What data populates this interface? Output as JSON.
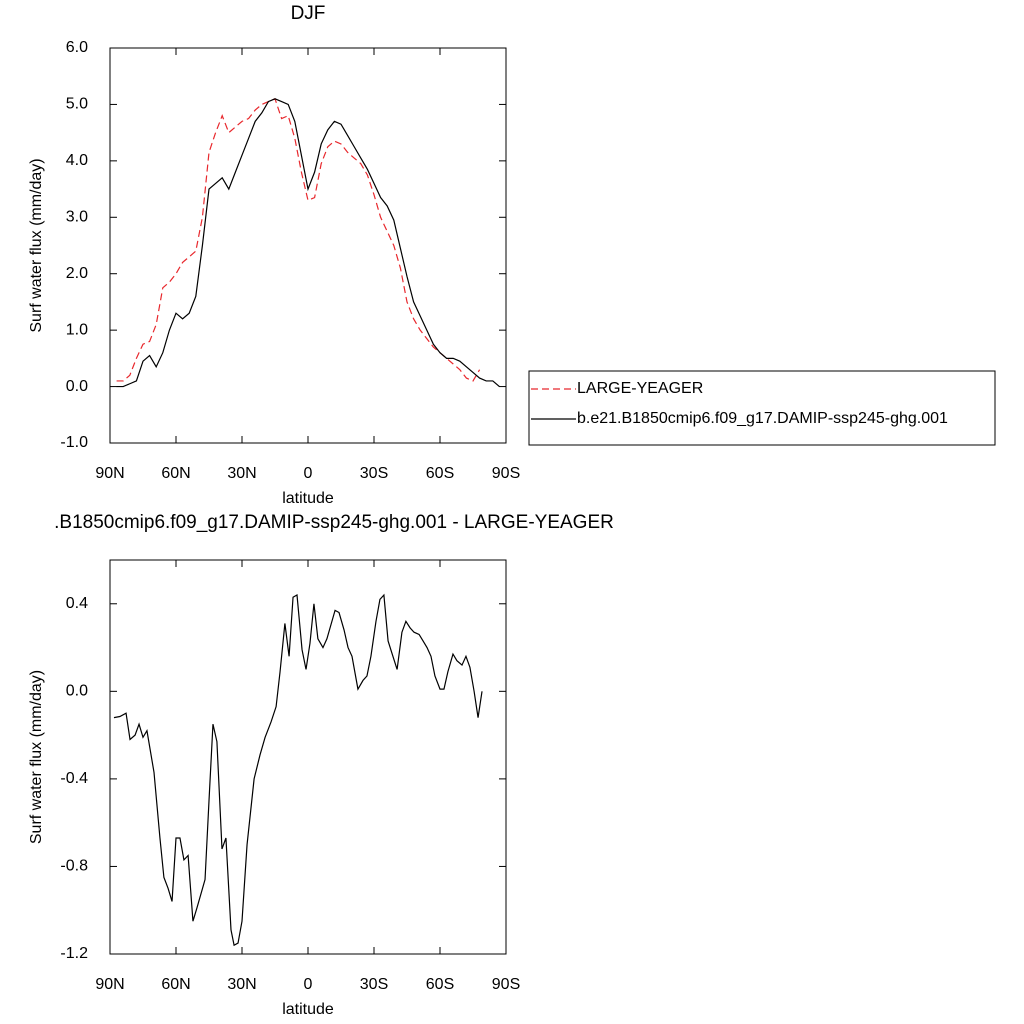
{
  "chart_data": [
    {
      "type": "line",
      "title": "DJF",
      "xlabel": "latitude",
      "ylabel": "Surf water flux (mm/day)",
      "x": [
        87,
        84,
        81,
        78,
        75,
        72,
        69,
        66,
        63,
        60,
        57,
        54,
        51,
        48,
        45,
        42,
        39,
        36,
        33,
        30,
        27,
        24,
        21,
        18,
        15,
        12,
        9,
        6,
        3,
        0,
        -3,
        -6,
        -9,
        -12,
        -15,
        -18,
        -21,
        -24,
        -27,
        -30,
        -33,
        -36,
        -39,
        -42,
        -45,
        -48,
        -51,
        -54,
        -57,
        -60,
        -63,
        -66,
        -69,
        -72,
        -75,
        -78,
        -81,
        -84,
        -87
      ],
      "series": [
        {
          "name": "LARGE-YEAGER",
          "color": "#e8282d",
          "line_style": "dashed",
          "values": [
            0.1,
            0.1,
            0.2,
            0.5,
            0.75,
            0.8,
            1.1,
            1.75,
            1.85,
            2.0,
            2.2,
            2.3,
            2.4,
            3.0,
            4.15,
            4.5,
            4.8,
            4.5,
            4.6,
            4.7,
            4.75,
            4.9,
            5.0,
            5.05,
            5.1,
            4.75,
            4.8,
            4.4,
            3.8,
            3.3,
            3.35,
            3.95,
            4.25,
            4.35,
            4.3,
            4.15,
            4.05,
            3.95,
            3.75,
            3.4,
            3.0,
            2.75,
            2.5,
            2.1,
            1.5,
            1.2,
            1.0,
            0.85,
            0.7,
            0.6,
            0.5,
            0.4,
            0.3,
            0.15,
            0.1,
            0.3,
            null,
            null,
            null
          ]
        },
        {
          "name": "b.e21.B1850cmip6.f09_g17.DAMIP-ssp245-ghg.001",
          "color": "#000000",
          "line_style": "solid",
          "values": [
            0.0,
            0.0,
            0.05,
            0.1,
            0.45,
            0.55,
            0.35,
            0.6,
            1.0,
            1.3,
            1.2,
            1.3,
            1.6,
            2.5,
            3.5,
            3.6,
            3.7,
            3.5,
            3.8,
            4.1,
            4.4,
            4.7,
            4.85,
            5.05,
            5.1,
            5.05,
            5.0,
            4.7,
            4.1,
            3.5,
            3.8,
            4.3,
            4.55,
            4.7,
            4.65,
            4.45,
            4.25,
            4.05,
            3.85,
            3.6,
            3.35,
            3.2,
            2.95,
            2.45,
            1.95,
            1.5,
            1.25,
            1.0,
            0.75,
            0.6,
            0.5,
            0.5,
            0.45,
            0.35,
            0.25,
            0.15,
            0.1,
            0.1,
            0.0
          ]
        }
      ],
      "xlim": [
        90,
        -90
      ],
      "xticks": [
        {
          "value": 90,
          "label": "90N"
        },
        {
          "value": 60,
          "label": "60N"
        },
        {
          "value": 30,
          "label": "30N"
        },
        0,
        {
          "value": -30,
          "label": "30S"
        },
        {
          "value": -60,
          "label": "60S"
        },
        {
          "value": -90,
          "label": "90S"
        }
      ],
      "ylim": [
        -1,
        6
      ],
      "yticks": [
        {
          "value": -1,
          "label": "-1.0"
        },
        {
          "value": 0,
          "label": "0.0"
        },
        {
          "value": 1,
          "label": "1.0"
        },
        {
          "value": 2,
          "label": "2.0"
        },
        {
          "value": 3,
          "label": "3.0"
        },
        {
          "value": 4,
          "label": "4.0"
        },
        {
          "value": 5,
          "label": "5.0"
        },
        {
          "value": 6,
          "label": "6.0"
        }
      ],
      "legend": "outside-right"
    },
    {
      "type": "line",
      "title": ".B1850cmip6.f09_g17.DAMIP-ssp245-ghg.001 - LARGE-YEAGER",
      "xlabel": "latitude",
      "ylabel": "Surf water flux (mm/day)",
      "x": [
        88.2,
        85.5,
        82.7,
        80.9,
        78.6,
        76.8,
        75,
        73.2,
        70,
        67.3,
        65.5,
        63.6,
        61.8,
        60,
        58.2,
        56.4,
        54.5,
        52.3,
        50.5,
        46.8,
        45,
        43.2,
        41.4,
        39.1,
        37.3,
        35,
        33.6,
        31.8,
        30,
        27.7,
        24.5,
        21.8,
        19.5,
        16.8,
        14.5,
        12.7,
        10.5,
        8.6,
        6.8,
        5,
        2.7,
        0.9,
        -0.9,
        -2.7,
        -4.5,
        -6.8,
        -8.6,
        -12.3,
        -14.1,
        -16.4,
        -18.2,
        -20,
        -22.7,
        -25,
        -26.8,
        -28.6,
        -30.9,
        -32.7,
        -34.5,
        -36.4,
        -38.6,
        -40.5,
        -42.7,
        -44.5,
        -46.4,
        -48.2,
        -50.5,
        -52.3,
        -54.1,
        -55.9,
        -57.7,
        -60,
        -61.8,
        -63.6,
        -65.9,
        -67.7,
        -70,
        -71.8,
        -73.6,
        -75.5,
        -77.3,
        -79.1
      ],
      "series": [
        {
          "color": "#000000",
          "line_style": "solid",
          "values": [
            -0.12,
            -0.115,
            -0.1,
            -0.22,
            -0.2,
            -0.15,
            -0.21,
            -0.18,
            -0.37,
            -0.67,
            -0.85,
            -0.9,
            -0.96,
            -0.67,
            -0.67,
            -0.77,
            -0.75,
            -1.05,
            -0.99,
            -0.86,
            -0.5,
            -0.15,
            -0.23,
            -0.72,
            -0.67,
            -1.09,
            -1.16,
            -1.15,
            -1.05,
            -0.7,
            -0.4,
            -0.29,
            -0.21,
            -0.14,
            -0.07,
            0.09,
            0.31,
            0.16,
            0.43,
            0.44,
            0.19,
            0.1,
            0.22,
            0.4,
            0.24,
            0.2,
            0.24,
            0.37,
            0.36,
            0.28,
            0.2,
            0.16,
            0.01,
            0.05,
            0.07,
            0.16,
            0.32,
            0.42,
            0.44,
            0.23,
            0.16,
            0.1,
            0.27,
            0.32,
            0.29,
            0.27,
            0.26,
            0.23,
            0.2,
            0.16,
            0.07,
            0.01,
            0.01,
            0.09,
            0.17,
            0.14,
            0.12,
            0.16,
            0.11,
            0.0,
            -0.12,
            0.0
          ]
        }
      ],
      "xlim": [
        90,
        -90
      ],
      "xticks": [
        {
          "value": 90,
          "label": "90N"
        },
        {
          "value": 60,
          "label": "60N"
        },
        {
          "value": 30,
          "label": "30N"
        },
        0,
        {
          "value": -30,
          "label": "30S"
        },
        {
          "value": -60,
          "label": "60S"
        },
        {
          "value": -90,
          "label": "90S"
        }
      ],
      "ylim": [
        -1.2,
        0.6
      ],
      "yticks": [
        -1.2,
        -0.8,
        -0.4,
        {
          "value": 0,
          "label": "0.0"
        },
        0.4
      ]
    }
  ]
}
